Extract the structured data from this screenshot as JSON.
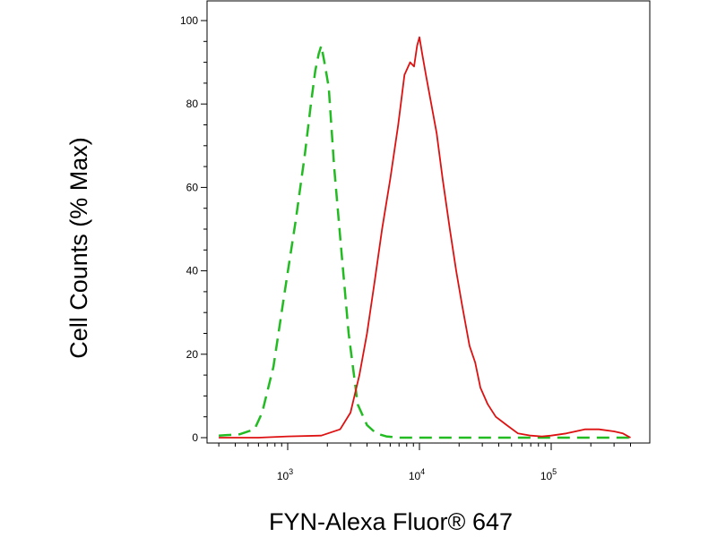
{
  "chart_data": {
    "type": "line",
    "title": "",
    "xlabel": "FYN-Alexa Fluor® 647",
    "ylabel": "Cell Counts (% Max)",
    "xscale": "log",
    "xlim": [
      250,
      450000
    ],
    "ylim": [
      0,
      104
    ],
    "grid": false,
    "legend": "none",
    "x_ticks": [
      {
        "value": 1000,
        "base": "10",
        "exponent": "3"
      },
      {
        "value": 10000,
        "base": "10",
        "exponent": "4"
      },
      {
        "value": 100000,
        "base": "10",
        "exponent": "5"
      }
    ],
    "y_ticks": [
      0,
      20,
      40,
      60,
      80,
      100
    ],
    "series": [
      {
        "color": "#22bb22",
        "style": "dashed",
        "x": [
          300,
          430,
          560,
          640,
          780,
          950,
          1150,
          1350,
          1500,
          1620,
          1720,
          1800,
          1900,
          2050,
          2250,
          2550,
          2900,
          3400,
          4000,
          4700,
          5600,
          7000,
          10000,
          30000,
          100000,
          400000
        ],
        "y": [
          0.5,
          0.8,
          2,
          6,
          17,
          35,
          52,
          68,
          80,
          88,
          92,
          94,
          90,
          84,
          65,
          45,
          25,
          8,
          3,
          1,
          0.3,
          0,
          0,
          0,
          0,
          0
        ]
      },
      {
        "color": "#dd1111",
        "style": "solid",
        "x": [
          300,
          600,
          1000,
          1800,
          2500,
          3000,
          3500,
          4000,
          4600,
          5200,
          6000,
          6900,
          7700,
          8500,
          9100,
          9600,
          10000,
          10500,
          11200,
          12300,
          13500,
          15000,
          17000,
          19000,
          21000,
          24000,
          26500,
          29000,
          33000,
          38000,
          46000,
          56000,
          70000,
          85000,
          100000,
          130000,
          180000,
          230000,
          300000,
          350000,
          400000
        ],
        "y": [
          0,
          0,
          0.3,
          0.5,
          2,
          6,
          15,
          25,
          38,
          50,
          62,
          75,
          87,
          90,
          89,
          94,
          96,
          92,
          87,
          80,
          73,
          62,
          50,
          40,
          32,
          22,
          18,
          12,
          8,
          5,
          3,
          1,
          0.5,
          0.3,
          0.5,
          1,
          2,
          2,
          1.5,
          1,
          0
        ]
      }
    ]
  }
}
